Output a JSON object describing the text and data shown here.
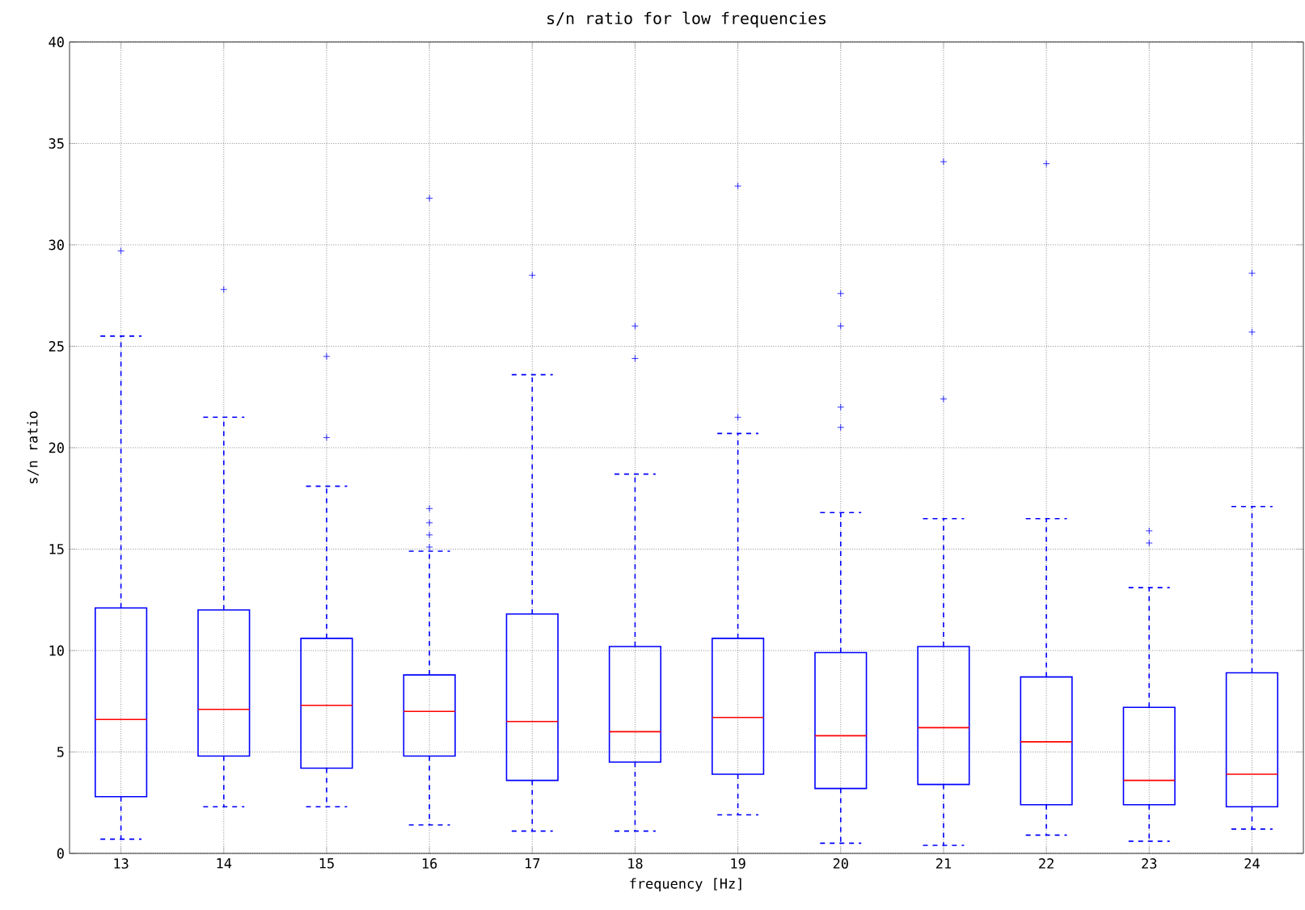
{
  "chart_data": {
    "type": "box",
    "title": "s/n ratio for low frequencies",
    "xlabel": "frequency [Hz]",
    "ylabel": "s/n ratio",
    "categories": [
      "13",
      "14",
      "15",
      "16",
      "17",
      "18",
      "19",
      "20",
      "21",
      "22",
      "23",
      "24"
    ],
    "color": "#0000ff",
    "marker": "cross",
    "grid": true,
    "ylim": [
      0,
      40
    ],
    "yticks": [
      0,
      5,
      10,
      15,
      20,
      25,
      30,
      35,
      40
    ],
    "boxes": [
      {
        "low": 0.7,
        "q1": 2.8,
        "median": 6.6,
        "q3": 12.1,
        "high": 25.5,
        "outliers": [
          29.7
        ]
      },
      {
        "low": 2.3,
        "q1": 4.8,
        "median": 7.1,
        "q3": 12.0,
        "high": 21.5,
        "outliers": [
          27.8
        ]
      },
      {
        "low": 2.3,
        "q1": 4.2,
        "median": 7.3,
        "q3": 10.6,
        "high": 18.1,
        "outliers": [
          20.5,
          24.5
        ]
      },
      {
        "low": 1.4,
        "q1": 4.8,
        "median": 7.0,
        "q3": 8.8,
        "high": 14.9,
        "outliers": [
          15.1,
          15.7,
          16.3,
          17.0,
          32.3
        ]
      },
      {
        "low": 1.1,
        "q1": 3.6,
        "median": 6.5,
        "q3": 11.8,
        "high": 23.6,
        "outliers": [
          28.5
        ]
      },
      {
        "low": 1.1,
        "q1": 4.5,
        "median": 6.0,
        "q3": 10.2,
        "high": 18.7,
        "outliers": [
          24.4,
          26.0
        ]
      },
      {
        "low": 1.9,
        "q1": 3.9,
        "median": 6.7,
        "q3": 10.6,
        "high": 20.7,
        "outliers": [
          21.5,
          32.9
        ]
      },
      {
        "low": 0.5,
        "q1": 3.2,
        "median": 5.8,
        "q3": 9.9,
        "high": 16.8,
        "outliers": [
          21.0,
          22.0,
          26.0,
          27.6
        ]
      },
      {
        "low": 0.4,
        "q1": 3.4,
        "median": 6.2,
        "q3": 10.2,
        "high": 16.5,
        "outliers": [
          22.4,
          34.1
        ]
      },
      {
        "low": 0.9,
        "q1": 2.4,
        "median": 5.5,
        "q3": 8.7,
        "high": 16.5,
        "outliers": [
          34.0
        ]
      },
      {
        "low": 0.6,
        "q1": 2.4,
        "median": 3.6,
        "q3": 7.2,
        "high": 13.1,
        "outliers": [
          15.3,
          15.9
        ]
      },
      {
        "low": 1.2,
        "q1": 2.3,
        "median": 3.9,
        "q3": 8.9,
        "high": 17.1,
        "outliers": [
          25.7,
          28.6
        ]
      }
    ]
  }
}
